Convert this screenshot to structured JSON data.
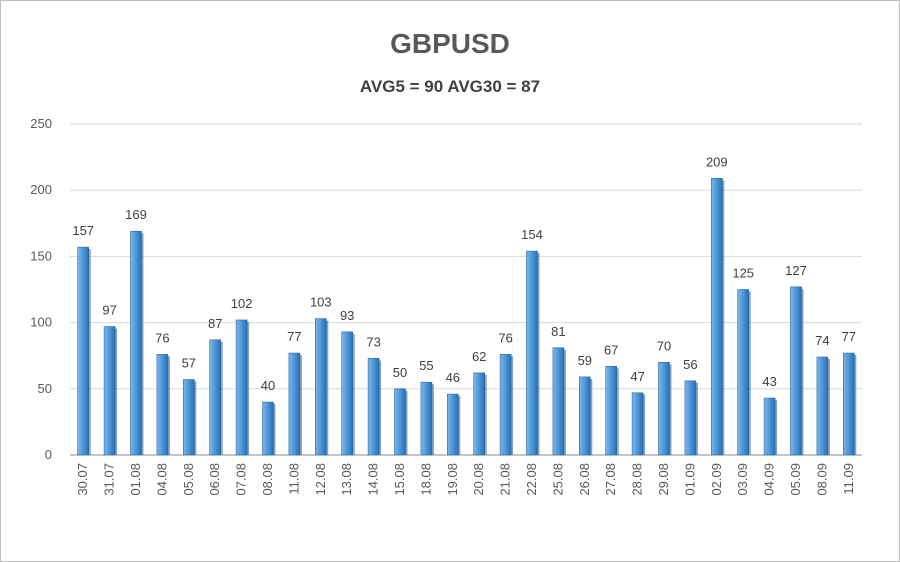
{
  "chart_data": {
    "type": "bar",
    "title": "GBPUSD",
    "subtitle": "AVG5 = 90 AVG30 = 87",
    "xlabel": "",
    "ylabel": "",
    "ylim": [
      0,
      250
    ],
    "yticks": [
      0,
      50,
      100,
      150,
      200,
      250
    ],
    "grid": true,
    "categories": [
      "30.07",
      "31.07",
      "01.08",
      "04.08",
      "05.08",
      "06.08",
      "07.08",
      "08.08",
      "11.08",
      "12.08",
      "13.08",
      "14.08",
      "15.08",
      "18.08",
      "19.08",
      "20.08",
      "21.08",
      "22.08",
      "25.08",
      "26.08",
      "27.08",
      "28.08",
      "29.08",
      "01.09",
      "02.09",
      "03.09",
      "04.09",
      "05.09",
      "08.09",
      "11.09"
    ],
    "values": [
      157,
      97,
      169,
      76,
      57,
      87,
      102,
      40,
      77,
      103,
      93,
      73,
      50,
      55,
      46,
      62,
      76,
      154,
      81,
      59,
      67,
      47,
      70,
      56,
      209,
      125,
      43,
      127,
      74,
      77
    ],
    "bar_color": "#3f8fd2"
  }
}
